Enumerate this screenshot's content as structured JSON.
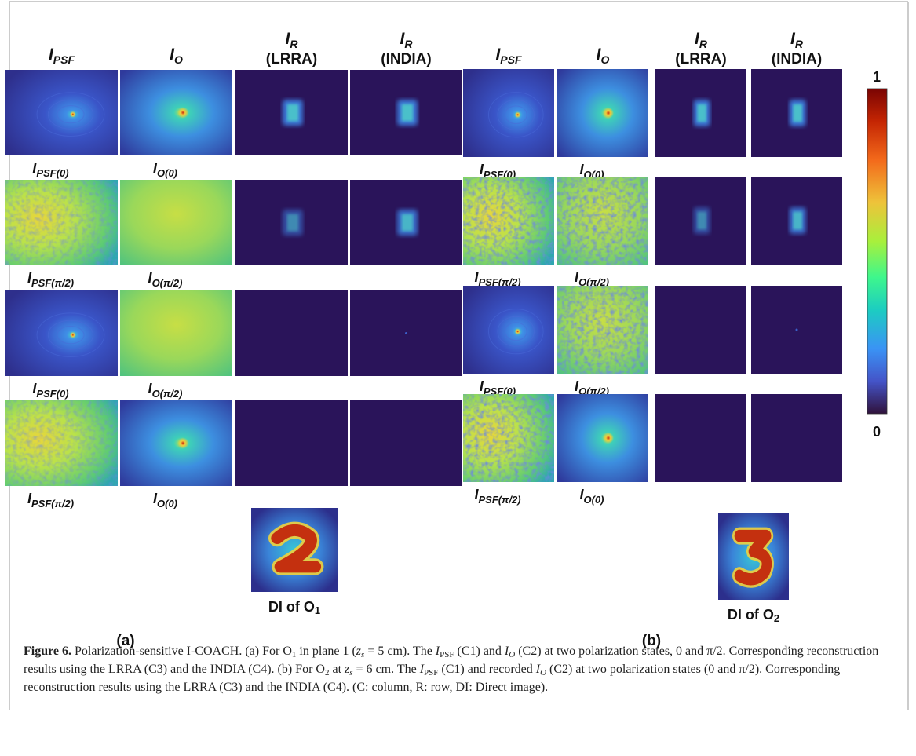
{
  "panels": [
    {
      "headers": [
        {
          "main": "I",
          "sub": "PSF"
        },
        {
          "main": "I",
          "sub": "O"
        },
        {
          "main": "I",
          "sub": "R",
          "line2": "(LRRA)"
        },
        {
          "main": "I",
          "sub": "R",
          "line2": "(INDIA)"
        }
      ],
      "row_labels": [
        [
          {
            "main": "I",
            "sub": "PSF(0)"
          },
          {
            "main": "I",
            "sub": "O(0)"
          }
        ],
        [
          {
            "main": "I",
            "sub": "PSF(π/2)"
          },
          {
            "main": "I",
            "sub": "O(π/2)"
          }
        ],
        [
          {
            "main": "I",
            "sub": "PSF(0)"
          },
          {
            "main": "I",
            "sub": "O(π/2)"
          }
        ],
        [
          {
            "main": "I",
            "sub": "PSF(π/2)"
          },
          {
            "main": "I",
            "sub": "O(0)"
          }
        ]
      ],
      "direct_image_label": {
        "text": "DI of O",
        "sub": "1"
      },
      "tag": "(a)"
    },
    {
      "headers": [
        {
          "main": "I",
          "sub": "PSF"
        },
        {
          "main": "I",
          "sub": "O"
        },
        {
          "main": "I",
          "sub": "R",
          "line2": "(LRRA)"
        },
        {
          "main": "I",
          "sub": "R",
          "line2": "(INDIA)"
        }
      ],
      "row_labels": [
        [
          {
            "main": "I",
            "sub": "PSF(0)"
          },
          {
            "main": "I",
            "sub": "O(0)"
          }
        ],
        [
          {
            "main": "I",
            "sub": "PSF(π/2)"
          },
          {
            "main": "I",
            "sub": "O(π/2)"
          }
        ],
        [
          {
            "main": "I",
            "sub": "PSF(0)"
          },
          {
            "main": "I",
            "sub": "O(π/2)"
          }
        ],
        [
          {
            "main": "I",
            "sub": "PSF(π/2)"
          },
          {
            "main": "I",
            "sub": "O(0)"
          }
        ]
      ],
      "direct_image_label": {
        "text": "DI of O",
        "sub": "2"
      },
      "tag": "(b)"
    }
  ],
  "colorbar": {
    "max_label": "1",
    "min_label": "0"
  },
  "caption": {
    "label": "Figure 6.",
    "parts": [
      " Polarization-sensitive I-COACH. (a) For O",
      "1",
      " in plane 1 (",
      "z",
      "s",
      " = 5 cm). The ",
      "I",
      "PSF",
      " (C1) and ",
      "I",
      "O",
      " (C2) at two polarization states, 0 and π/2. Corresponding reconstruction results using the LRRA (C3) and the INDIA (C4). (b) For O",
      "2",
      " at ",
      "z",
      "s",
      " = 6 cm. The ",
      "I",
      "PSF",
      " (C1) and recorded ",
      "I",
      "O",
      " (C2) at two polarization states (0 and π/2). Corresponding reconstruction results using the LRRA (C3) and the INDIA (C4). (C: column, R: row, DI: Direct image)."
    ]
  }
}
